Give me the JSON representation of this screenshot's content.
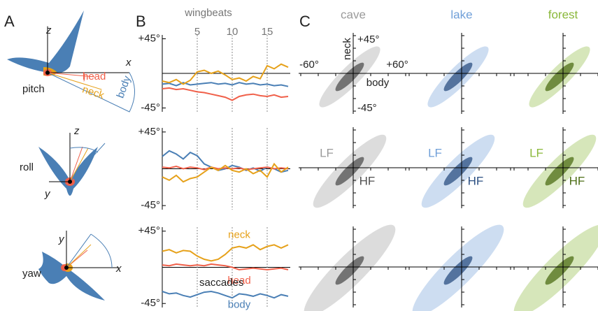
{
  "panel_a": {
    "label": "A",
    "pitch": {
      "axis_z": "z",
      "axis_x": "x",
      "head": "head",
      "neck": "neck",
      "body": "body",
      "name": "pitch"
    },
    "roll": {
      "axis_z": "z",
      "axis_y": "y",
      "name": "roll"
    },
    "yaw": {
      "axis_y": "y",
      "axis_x": "x",
      "name": "yaw"
    }
  },
  "chart_data": {
    "type": "line",
    "panel_label": "B",
    "xlabel": "wingbeats",
    "annotation": "saccades",
    "x": [
      0,
      1,
      2,
      3,
      4,
      5,
      6,
      7,
      8,
      9,
      10,
      11,
      12,
      13,
      14,
      15,
      16,
      17,
      18
    ],
    "xlim": [
      0,
      18.3
    ],
    "xticks": [
      5,
      10,
      15
    ],
    "subplots": [
      {
        "ylim": [
          -50,
          50
        ],
        "yticks": [
          {
            "value": 45,
            "label": "+45°"
          },
          {
            "value": -45,
            "label": "-45°"
          }
        ],
        "series": [
          {
            "color": "#4a7fb5",
            "values": [
              -14,
              -13,
              -16,
              -12,
              -15,
              -14,
              -13,
              -12,
              -14,
              -13,
              -15,
              -12,
              -14,
              -13,
              -15,
              -14,
              -16,
              -15,
              -17
            ]
          },
          {
            "color": "#f0604a",
            "values": [
              -20,
              -19,
              -21,
              -20,
              -22,
              -24,
              -25,
              -27,
              -29,
              -31,
              -35,
              -30,
              -28,
              -27,
              -29,
              -30,
              -28,
              -31,
              -30
            ]
          },
          {
            "color": "#e6a11a",
            "values": [
              -10,
              -12,
              -8,
              -14,
              -9,
              2,
              4,
              0,
              3,
              -2,
              -8,
              -6,
              -10,
              -4,
              -7,
              10,
              6,
              12,
              8
            ]
          }
        ]
      },
      {
        "ylim": [
          -50,
          50
        ],
        "yticks": [
          {
            "value": 45,
            "label": "+45°"
          },
          {
            "value": -45,
            "label": "-45°"
          }
        ],
        "series": [
          {
            "color": "#4a7fb5",
            "values": [
              15,
              22,
              18,
              12,
              20,
              16,
              6,
              2,
              -2,
              0,
              4,
              2,
              -2,
              1,
              -3,
              2,
              0,
              -4,
              -2
            ]
          },
          {
            "color": "#f0604a",
            "values": [
              2,
              1,
              3,
              0,
              2,
              1,
              -1,
              2,
              0,
              1,
              0,
              1,
              -1,
              0,
              1,
              2,
              0,
              1,
              0
            ]
          },
          {
            "color": "#e6a11a",
            "values": [
              -10,
              -14,
              -8,
              -16,
              -12,
              -10,
              -4,
              2,
              -2,
              4,
              -2,
              -4,
              0,
              -6,
              -2,
              -10,
              6,
              -4,
              2
            ]
          }
        ]
      },
      {
        "ylim": [
          -50,
          50
        ],
        "yticks": [
          {
            "value": 45,
            "label": "+45°"
          },
          {
            "value": -45,
            "label": "-45°"
          }
        ],
        "series": [
          {
            "name": "neck",
            "color": "#e6a11a",
            "values": [
              20,
              22,
              18,
              21,
              20,
              14,
              10,
              8,
              10,
              16,
              24,
              26,
              24,
              28,
              22,
              26,
              28,
              24,
              28
            ]
          },
          {
            "name": "head",
            "color": "#f0604a",
            "values": [
              3,
              2,
              4,
              3,
              2,
              3,
              2,
              4,
              3,
              2,
              0,
              -3,
              -2,
              -1,
              -2,
              -3,
              -2,
              -1,
              -3
            ]
          },
          {
            "name": "body",
            "color": "#4a7fb5",
            "values": [
              -30,
              -33,
              -32,
              -35,
              -37,
              -34,
              -31,
              -30,
              -32,
              -35,
              -38,
              -33,
              -34,
              -36,
              -33,
              -35,
              -38,
              -34,
              -36
            ]
          }
        ]
      }
    ]
  },
  "panel_c": {
    "label": "C",
    "columns": [
      {
        "title": "cave",
        "color": "#9a9a9a",
        "dark": "#505050"
      },
      {
        "title": "lake",
        "color": "#6f9fd8",
        "dark": "#2b4f82"
      },
      {
        "title": "forest",
        "color": "#8ab83a",
        "dark": "#4d6e16"
      }
    ],
    "axis_labels": {
      "y": "neck",
      "ymax": "+45°",
      "ymin": "-45°",
      "xmin": "-60°",
      "xmax": "+60°",
      "x": "body"
    },
    "lf": "LF",
    "hf": "HF"
  }
}
